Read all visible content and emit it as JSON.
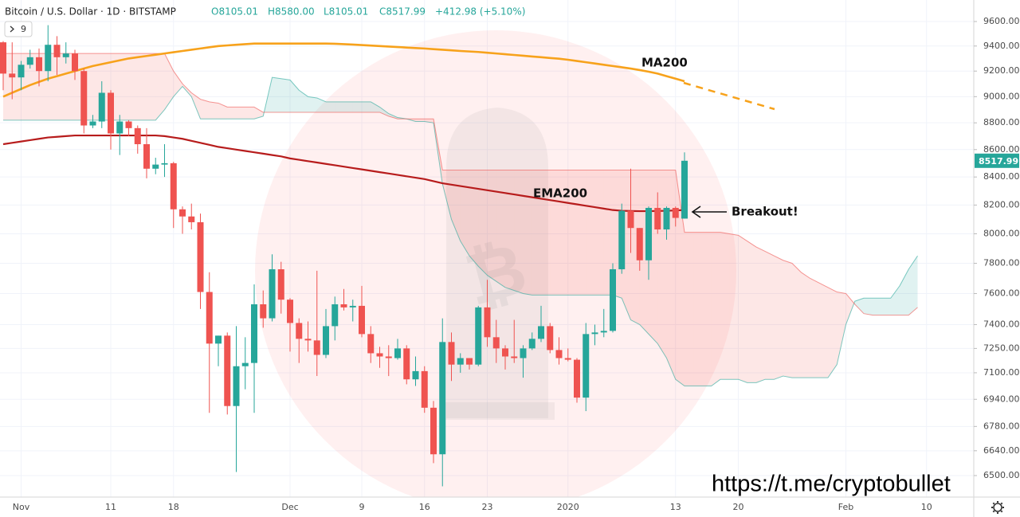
{
  "chart_data": {
    "type": "candlestick",
    "header": {
      "symbol": "Bitcoin / U.S. Dollar · 1D · BITSTAMP",
      "ohlc": [
        "O8105.01",
        "H8580.00",
        "L8105.01",
        "C8517.99"
      ],
      "change": "+412.98 (+5.10%)",
      "indicator_count": "9"
    },
    "categories": [
      null,
      null,
      "Nov",
      null,
      null,
      null,
      null,
      null,
      null,
      null,
      null,
      null,
      "11",
      null,
      null,
      null,
      null,
      null,
      null,
      "18",
      null,
      null,
      null,
      null,
      null,
      null,
      null,
      null,
      null,
      null,
      null,
      null,
      "Dec",
      null,
      null,
      null,
      null,
      null,
      null,
      null,
      "9",
      null,
      null,
      null,
      null,
      null,
      null,
      "16",
      null,
      null,
      null,
      null,
      null,
      null,
      "23",
      null,
      null,
      null,
      null,
      null,
      null,
      null,
      null,
      "2020",
      null,
      null,
      null,
      null,
      null,
      null,
      null,
      null,
      null,
      null,
      null,
      "13",
      null,
      null,
      null,
      null,
      null,
      null,
      "20",
      null,
      null,
      null,
      null,
      null,
      null,
      null,
      null,
      null,
      null,
      null,
      "Feb",
      null,
      null,
      null,
      null,
      null,
      null,
      null,
      null,
      "10"
    ],
    "candles": {
      "up_color": "#26a69a",
      "down_color": "#ef5350",
      "open": [
        9430,
        9180,
        9150,
        9250,
        9310,
        9200,
        9410,
        9310,
        9340,
        9200,
        8780,
        8810,
        9030,
        8720,
        8810,
        8760,
        8640,
        8460,
        8490,
        8500,
        8170,
        8120,
        8080,
        7610,
        7280,
        7330,
        6900,
        7140,
        7160,
        7530,
        7440,
        7760,
        7560,
        7410,
        7310,
        7300,
        7210,
        7390,
        7530,
        7510,
        7520,
        7340,
        7220,
        7200,
        7190,
        7250,
        7060,
        7110,
        6890,
        6620,
        7290,
        7150,
        7190,
        7150,
        7510,
        7320,
        7250,
        7200,
        7190,
        7250,
        7310,
        7390,
        7240,
        7190,
        7180,
        6950,
        7340,
        7350,
        7360,
        7760,
        8160,
        8040,
        7820,
        8180,
        8030,
        8180,
        8105.01,
        null,
        null,
        null,
        null,
        null,
        null,
        null,
        null,
        null,
        null,
        null,
        null,
        null,
        null,
        null,
        null,
        null,
        null,
        null,
        null,
        null,
        null,
        null,
        null,
        null,
        null,
        null
      ],
      "high": [
        9440,
        9430,
        9280,
        9370,
        9380,
        9570,
        9480,
        9430,
        9370,
        9220,
        8860,
        9120,
        9050,
        8860,
        8820,
        8780,
        8760,
        8540,
        8640,
        8510,
        8190,
        8210,
        8140,
        7740,
        7330,
        7350,
        7390,
        7320,
        7660,
        7620,
        7860,
        7810,
        7570,
        7440,
        7420,
        7750,
        7500,
        7580,
        7630,
        7560,
        7650,
        7390,
        7260,
        7270,
        7310,
        7270,
        7200,
        7140,
        6930,
        7440,
        7350,
        7220,
        7190,
        7520,
        7690,
        7430,
        7270,
        7430,
        7270,
        7350,
        7520,
        7410,
        7320,
        7250,
        7190,
        7410,
        7400,
        7500,
        7800,
        8210,
        8460,
        8040,
        8190,
        8290,
        8190,
        8190,
        8580,
        null,
        null,
        null,
        null,
        null,
        null,
        null,
        null,
        null,
        null,
        null,
        null,
        null,
        null,
        null,
        null,
        null,
        null,
        null,
        null,
        null,
        null,
        null,
        null,
        null,
        null,
        null
      ],
      "low": [
        9050,
        8980,
        9050,
        9220,
        9080,
        9120,
        9170,
        9260,
        9130,
        8720,
        8760,
        8760,
        8600,
        8560,
        8700,
        8570,
        8390,
        8420,
        8400,
        8040,
        8000,
        8030,
        7500,
        6860,
        7140,
        6850,
        6520,
        7000,
        6860,
        7380,
        7420,
        7470,
        7230,
        7160,
        7230,
        7080,
        7190,
        7300,
        7490,
        7420,
        7320,
        7160,
        7130,
        7080,
        7180,
        7030,
        7020,
        6860,
        6570,
        6440,
        7050,
        7100,
        7120,
        7140,
        7260,
        7160,
        7120,
        7160,
        7070,
        7240,
        7290,
        7220,
        7150,
        7170,
        6920,
        6870,
        7270,
        7320,
        7350,
        7730,
        7870,
        7750,
        7690,
        8000,
        7960,
        8050,
        8105.01,
        null,
        null,
        null,
        null,
        null,
        null,
        null,
        null,
        null,
        null,
        null,
        null,
        null,
        null,
        null,
        null,
        null,
        null,
        null,
        null,
        null,
        null,
        null,
        null,
        null,
        null,
        null
      ],
      "close": [
        9180,
        9150,
        9250,
        9310,
        9200,
        9410,
        9310,
        9340,
        9200,
        8780,
        8810,
        9030,
        8720,
        8810,
        8760,
        8640,
        8460,
        8490,
        8500,
        8170,
        8120,
        8080,
        7610,
        7280,
        7330,
        6900,
        7140,
        7160,
        7530,
        7440,
        7760,
        7560,
        7410,
        7310,
        7300,
        7210,
        7390,
        7530,
        7510,
        7520,
        7340,
        7220,
        7200,
        7190,
        7250,
        7060,
        7110,
        6890,
        6620,
        7290,
        7150,
        7190,
        7150,
        7510,
        7320,
        7250,
        7200,
        7190,
        7250,
        7310,
        7390,
        7240,
        7190,
        7180,
        6950,
        7340,
        7350,
        7360,
        7760,
        8160,
        8040,
        7820,
        8180,
        8030,
        8180,
        8110,
        8517.99,
        null,
        null,
        null,
        null,
        null,
        null,
        null,
        null,
        null,
        null,
        null,
        null,
        null,
        null,
        null,
        null,
        null,
        null,
        null,
        null,
        null,
        null,
        null,
        null,
        null,
        null,
        null
      ]
    },
    "series": [
      {
        "name": "MA200",
        "color": "#f7a21b",
        "values": [
          9000,
          9030,
          9060,
          9090,
          9115,
          9140,
          9160,
          9180,
          9200,
          9220,
          9240,
          9255,
          9270,
          9285,
          9300,
          9310,
          9320,
          9330,
          9340,
          9350,
          9360,
          9370,
          9380,
          9390,
          9400,
          9405,
          9410,
          9415,
          9420,
          9420,
          9420,
          9420,
          9420,
          9420,
          9420,
          9420,
          9420,
          9418,
          9415,
          9412,
          9408,
          9404,
          9400,
          9396,
          9392,
          9388,
          9384,
          9380,
          9375,
          9370,
          9365,
          9360,
          9356,
          9352,
          9346,
          9340,
          9334,
          9328,
          9322,
          9316,
          9310,
          9304,
          9298,
          9290,
          9280,
          9270,
          9260,
          9250,
          9240,
          9230,
          9220,
          9208,
          9195,
          9180,
          9160,
          9140,
          9120,
          null,
          null,
          null,
          null,
          null,
          null,
          null,
          null,
          null,
          null,
          null,
          null,
          null,
          null,
          null,
          null,
          null,
          null,
          null,
          null,
          null,
          null,
          null,
          null,
          null,
          null,
          null
        ]
      },
      {
        "name": "EMA200",
        "color": "#b71c1c",
        "values": [
          8640,
          8650,
          8660,
          8670,
          8680,
          8690,
          8695,
          8700,
          8705,
          8705,
          8705,
          8705,
          8705,
          8705,
          8705,
          8705,
          8705,
          8705,
          8700,
          8690,
          8680,
          8665,
          8650,
          8635,
          8620,
          8610,
          8600,
          8590,
          8580,
          8570,
          8560,
          8550,
          8535,
          8525,
          8515,
          8505,
          8495,
          8485,
          8475,
          8465,
          8455,
          8445,
          8435,
          8425,
          8415,
          8405,
          8395,
          8385,
          8370,
          8355,
          8345,
          8335,
          8325,
          8315,
          8305,
          8295,
          8285,
          8275,
          8265,
          8255,
          8245,
          8235,
          8225,
          8215,
          8205,
          8195,
          8185,
          8175,
          8165,
          8160,
          8158,
          8157,
          8157,
          8158,
          8160,
          8162,
          8165,
          null,
          null,
          null,
          null,
          null,
          null,
          null,
          null,
          null,
          null,
          null,
          null,
          null,
          null,
          null,
          null,
          null,
          null,
          null,
          null,
          null,
          null,
          null,
          null,
          null,
          null,
          null
        ]
      }
    ],
    "cloud": {
      "up_color": "#26a69a",
      "down_color": "#ef5350",
      "span_a": [
        8820,
        8820,
        8820,
        8820,
        8820,
        8820,
        8820,
        8820,
        8820,
        8820,
        8820,
        8820,
        8820,
        8820,
        8820,
        8820,
        8820,
        8820,
        8900,
        9000,
        9080,
        9000,
        8830,
        8830,
        8830,
        8830,
        8830,
        8830,
        8830,
        8850,
        9150,
        9140,
        9130,
        9050,
        9000,
        8990,
        8960,
        8960,
        8960,
        8960,
        8960,
        8960,
        8920,
        8870,
        8840,
        8830,
        8810,
        8810,
        8800,
        8350,
        8100,
        7950,
        7850,
        7780,
        7720,
        7680,
        7640,
        7620,
        7600,
        7590,
        7590,
        7590,
        7590,
        7590,
        7590,
        7590,
        7590,
        7590,
        7590,
        7570,
        7430,
        7400,
        7340,
        7280,
        7190,
        7060,
        7020,
        7020,
        7020,
        7020,
        7060,
        7060,
        7060,
        7040,
        7040,
        7060,
        7060,
        7080,
        7070,
        7070,
        7070,
        7070,
        7070,
        7150,
        7400,
        7550,
        7570,
        7570,
        7570,
        7570,
        7650,
        7760,
        7850,
        null
      ],
      "span_b": [
        9340,
        9340,
        9340,
        9340,
        9340,
        9340,
        9340,
        9340,
        9340,
        9340,
        9340,
        9340,
        9340,
        9340,
        9340,
        9340,
        9340,
        9340,
        9340,
        9200,
        9100,
        9030,
        8980,
        8960,
        8950,
        8920,
        8920,
        8920,
        8920,
        8880,
        8880,
        8880,
        8880,
        8880,
        8880,
        8880,
        8880,
        8880,
        8880,
        8880,
        8880,
        8880,
        8880,
        8850,
        8830,
        8830,
        8830,
        8830,
        8830,
        8450,
        8450,
        8450,
        8450,
        8450,
        8450,
        8450,
        8450,
        8450,
        8450,
        8450,
        8450,
        8450,
        8450,
        8450,
        8450,
        8450,
        8450,
        8450,
        8450,
        8450,
        8450,
        8450,
        8450,
        8450,
        8450,
        8450,
        8010,
        8010,
        8010,
        8010,
        8010,
        8000,
        7990,
        7950,
        7910,
        7880,
        7850,
        7820,
        7800,
        7740,
        7700,
        7670,
        7640,
        7610,
        7600,
        7530,
        7470,
        7460,
        7460,
        7460,
        7460,
        7460,
        7510,
        null
      ]
    },
    "annotations": {
      "breakout": "Breakout!",
      "watermark": "https://t.me/cryptobullet"
    },
    "log_scale": true,
    "grid": true,
    "ylim": [
      6381,
      9779
    ],
    "yticks": [
      {
        "value": 9600,
        "label": "9600.00"
      },
      {
        "value": 9400,
        "label": "9400.00"
      },
      {
        "value": 9200,
        "label": "9200.00"
      },
      {
        "value": 9000,
        "label": "9000.00"
      },
      {
        "value": 8800,
        "label": "8800.00"
      },
      {
        "value": 8600,
        "label": "8600.00"
      },
      {
        "value": 8400,
        "label": "8400.00"
      },
      {
        "value": 8200,
        "label": "8200.00"
      },
      {
        "value": 8000,
        "label": "8000.00"
      },
      {
        "value": 7800,
        "label": "7800.00"
      },
      {
        "value": 7600,
        "label": "7600.00"
      },
      {
        "value": 7400,
        "label": "7400.00"
      },
      {
        "value": 7250,
        "label": "7250.00"
      },
      {
        "value": 7100,
        "label": "7100.00"
      },
      {
        "value": 6940,
        "label": "6940.00"
      },
      {
        "value": 6780,
        "label": "6780.00"
      },
      {
        "value": 6640,
        "label": "6640.00"
      },
      {
        "value": 6500,
        "label": "6500.00"
      }
    ]
  }
}
